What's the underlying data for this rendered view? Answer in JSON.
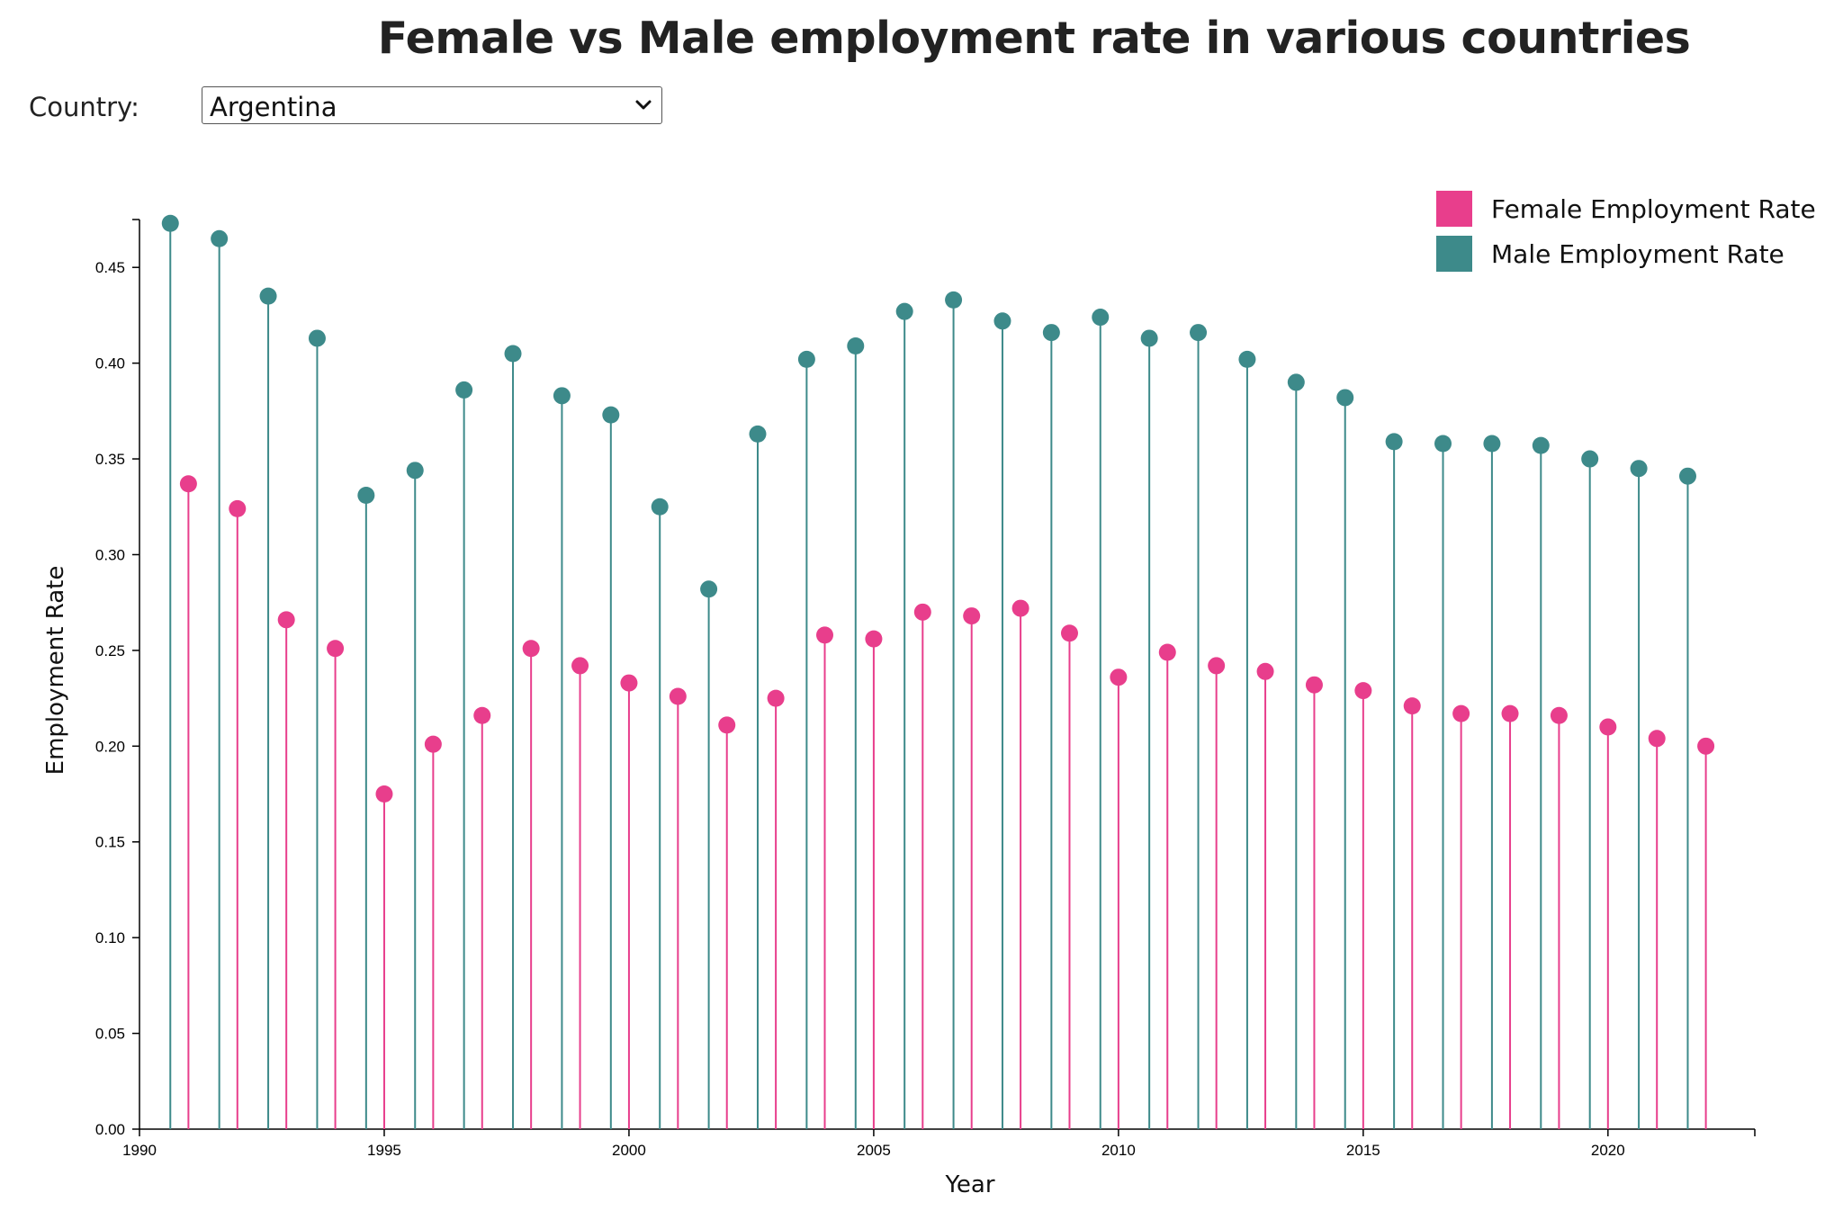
{
  "title": "Female vs Male employment rate in various countries",
  "controls": {
    "country_label": "Country:",
    "country_selected": "Argentina"
  },
  "colors": {
    "female": "#e83e8c",
    "male": "#3d8a8a",
    "axis": "#000000"
  },
  "chart_data": {
    "type": "lollipop",
    "xlabel": "Year",
    "ylabel": "Employment Rate",
    "xlim": [
      1990,
      2023
    ],
    "ylim": [
      0,
      0.475
    ],
    "x_ticks": [
      1990,
      1995,
      2000,
      2005,
      2010,
      2015,
      2020
    ],
    "x_tick_labels": [
      "1990",
      "1995",
      "2000",
      "2005",
      "2010",
      "2015",
      "2020"
    ],
    "y_ticks": [
      0,
      0.05,
      0.1,
      0.15,
      0.2,
      0.25,
      0.3,
      0.35,
      0.4,
      0.45
    ],
    "y_tick_labels": [
      "0.00",
      "0.05",
      "0.10",
      "0.15",
      "0.20",
      "0.25",
      "0.30",
      "0.35",
      "0.40",
      "0.45"
    ],
    "legend_position": "top-right",
    "x": [
      1991,
      1992,
      1993,
      1994,
      1995,
      1996,
      1997,
      1998,
      1999,
      2000,
      2001,
      2002,
      2003,
      2004,
      2005,
      2006,
      2007,
      2008,
      2009,
      2010,
      2011,
      2012,
      2013,
      2014,
      2015,
      2016,
      2017,
      2018,
      2019,
      2020,
      2021,
      2022
    ],
    "series": [
      {
        "name": "Female Employment Rate",
        "values": [
          0.337,
          0.324,
          0.266,
          0.251,
          0.175,
          0.201,
          0.216,
          0.251,
          0.242,
          0.233,
          0.226,
          0.211,
          0.225,
          0.258,
          0.256,
          0.27,
          0.268,
          0.272,
          0.259,
          0.236,
          0.249,
          0.242,
          0.239,
          0.232,
          0.229,
          0.221,
          0.217,
          0.217,
          0.216,
          0.21,
          0.204,
          0.2
        ]
      },
      {
        "name": "Male Employment Rate",
        "values": [
          0.473,
          0.465,
          0.435,
          0.413,
          0.331,
          0.344,
          0.386,
          0.405,
          0.383,
          0.373,
          0.325,
          0.282,
          0.363,
          0.402,
          0.409,
          0.427,
          0.433,
          0.422,
          0.416,
          0.424,
          0.413,
          0.416,
          0.402,
          0.39,
          0.382,
          0.359,
          0.358,
          0.358,
          0.357,
          0.35,
          0.345,
          0.341
        ]
      }
    ]
  }
}
